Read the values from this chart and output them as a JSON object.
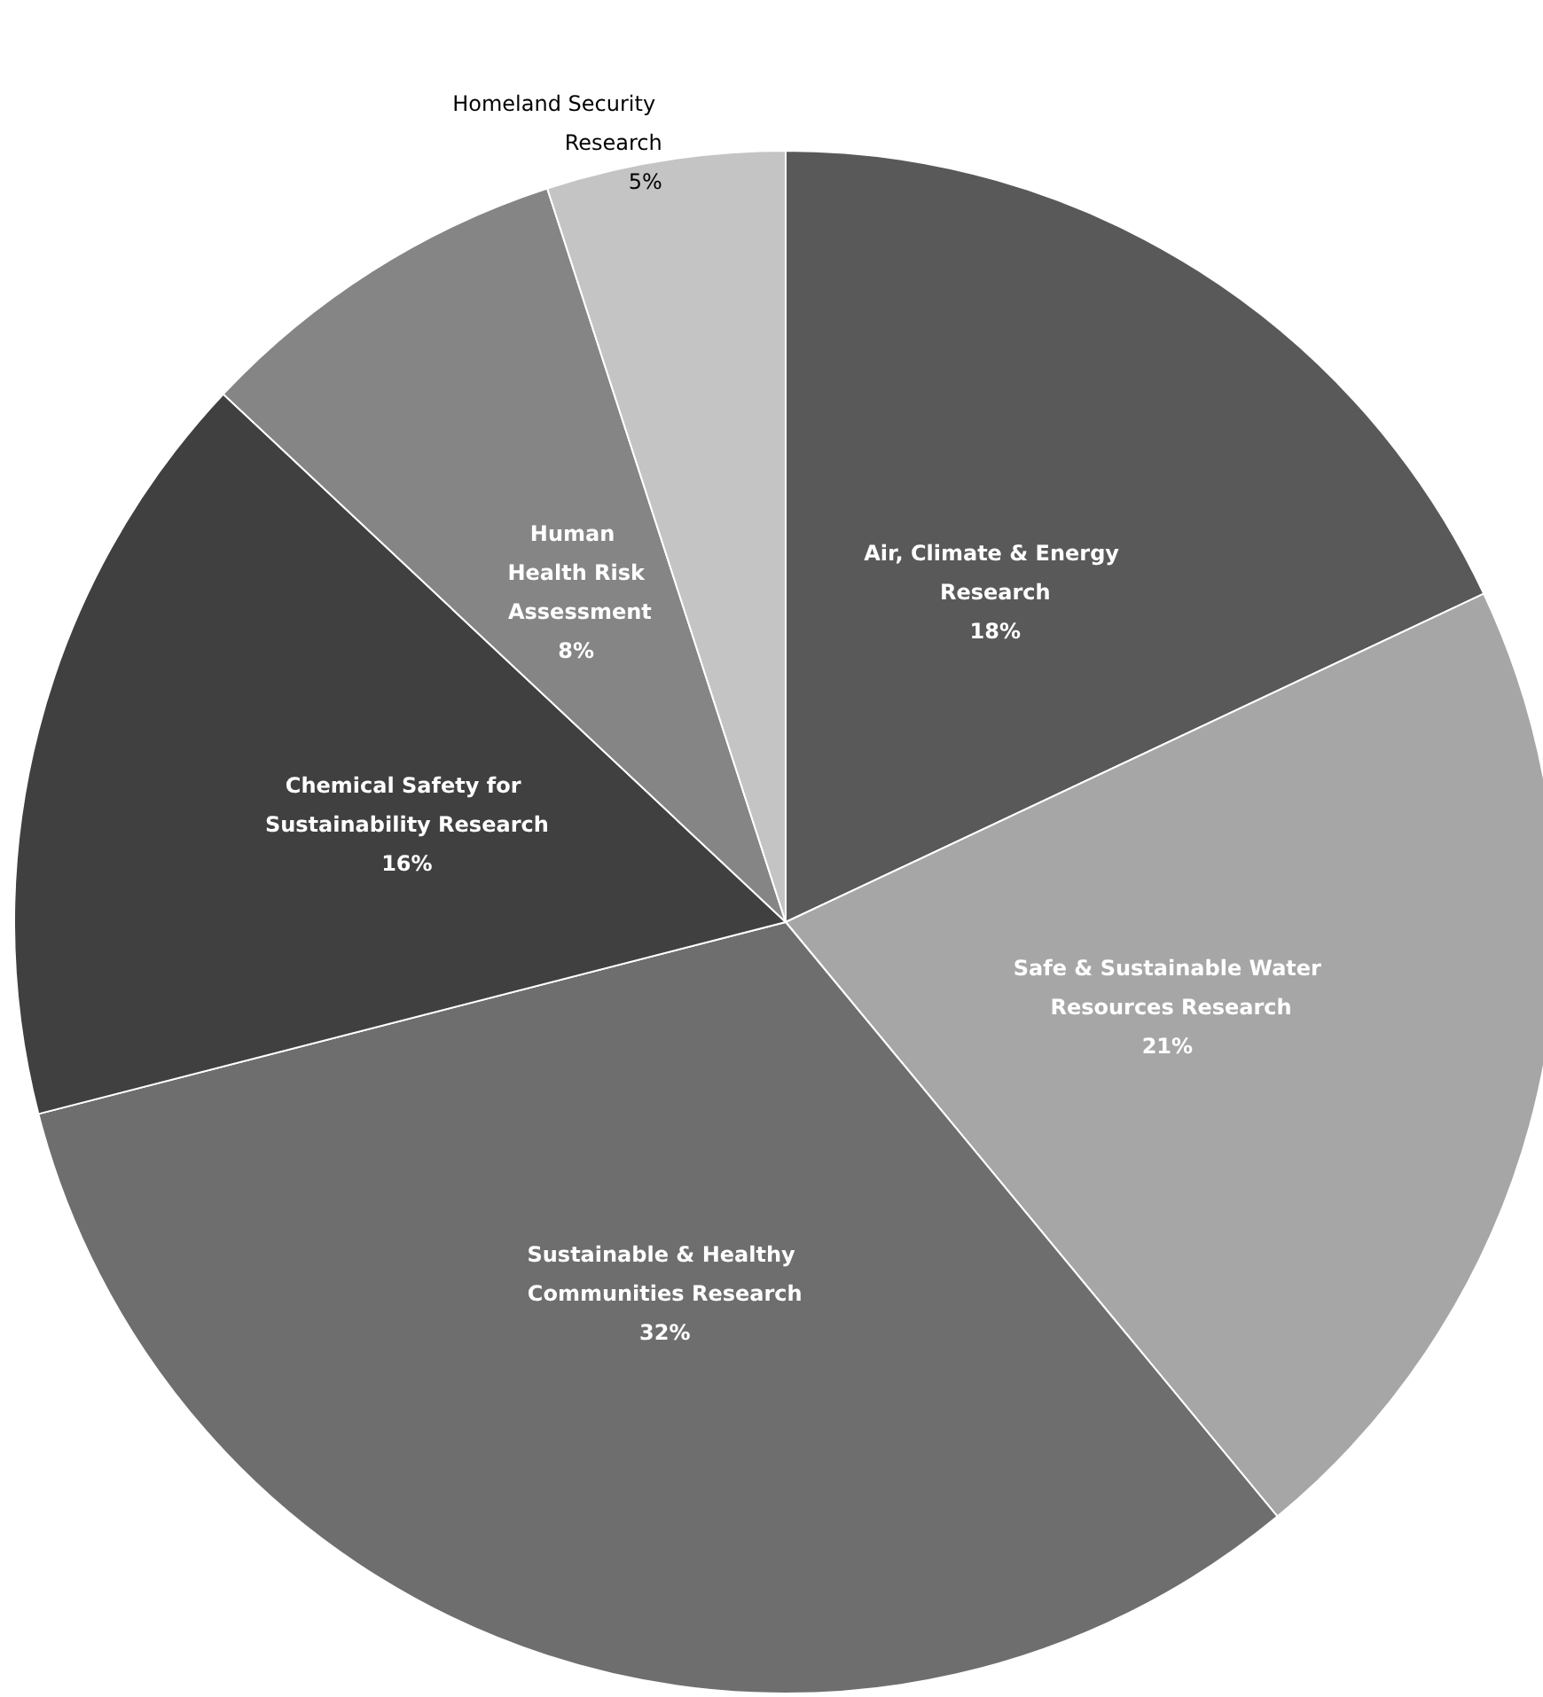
{
  "chart_data": {
    "type": "pie",
    "categories": [
      "Air, Climate & Energy Research",
      "Safe & Sustainable Water Resources Research",
      "Sustainable & Healthy Communities Research",
      "Chemical Safety for Sustainability Research",
      "Human Health Risk Assessment",
      "Homeland Security Research"
    ],
    "values": [
      18,
      21,
      32,
      16,
      8,
      5
    ],
    "colors": [
      "#595959",
      "#a6a6a6",
      "#6e6e6e",
      "#404040",
      "#858585",
      "#c4c4c4"
    ],
    "value_labels": [
      "18%",
      "21%",
      "32%",
      "16%",
      "8%",
      "5%"
    ],
    "legend": false
  }
}
